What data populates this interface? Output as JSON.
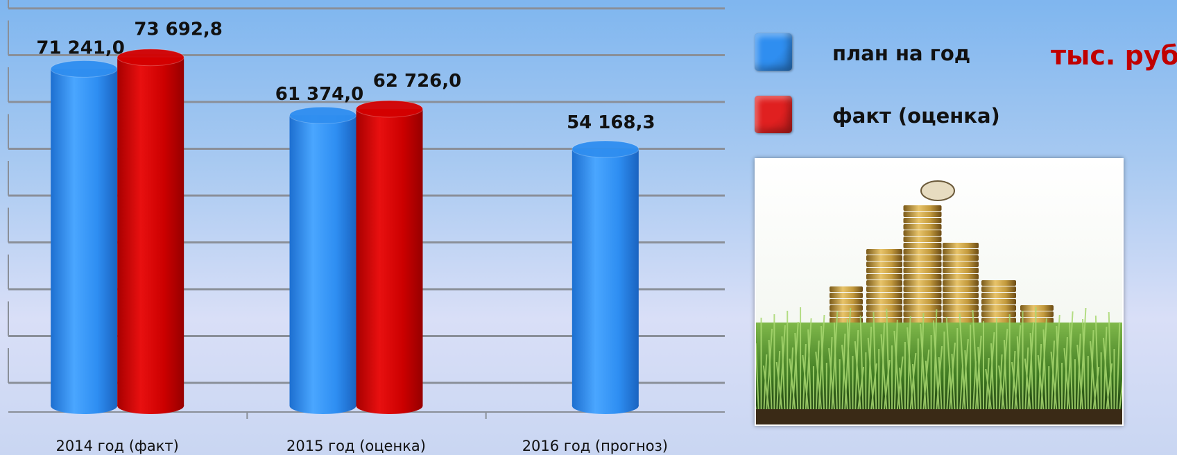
{
  "chart_data": {
    "type": "bar",
    "categories": [
      "2014 год (факт)",
      "2015 год (оценка)",
      "2016 год (прогноз)"
    ],
    "series": [
      {
        "name": "план на год",
        "values": [
          71241.0,
          61374.0,
          54168.3
        ],
        "labels": [
          "71 241,0",
          "61 374,0",
          "54 168,3"
        ],
        "color": "#2f8ef0"
      },
      {
        "name": "факт  (оценка)",
        "values": [
          73692.8,
          62726.0,
          null
        ],
        "labels": [
          "73 692,8",
          "62 726,0",
          ""
        ],
        "color": "#d40000"
      }
    ],
    "unit_label": "тыс. руб.",
    "ylim": [
      0,
      80000
    ],
    "grid": true,
    "legend_position": "right"
  },
  "legend_colors": {
    "plan": "#2f8ef0",
    "fact": "#e02020"
  },
  "image": {
    "subject": "coins-on-grass-photo"
  }
}
